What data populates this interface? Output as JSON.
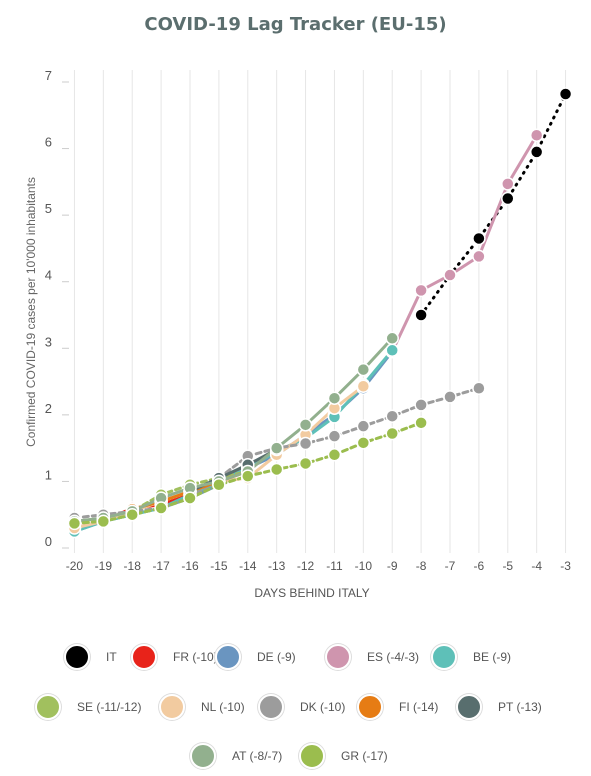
{
  "title": "COVID-19 Lag Tracker (EU-15)",
  "chart_data": {
    "type": "line",
    "xlabel": "DAYS BEHIND ITALY",
    "ylabel": "Confirmed COVID-19 cases per 10'000 inhabitants",
    "x_ticks": [
      -20,
      -19,
      -18,
      -17,
      -16,
      -15,
      -14,
      -13,
      -12,
      -11,
      -10,
      -9,
      -8,
      -7,
      -6,
      -5,
      -4,
      -3
    ],
    "y_ticks": [
      0,
      1,
      2,
      3,
      4,
      5,
      6,
      7
    ],
    "xlim": [
      -20.5,
      -2.5
    ],
    "ylim": [
      0,
      7
    ],
    "grid": "vertical",
    "legend_position": "bottom",
    "series": [
      {
        "name": "IT",
        "color": "#000000",
        "dashed": true,
        "x": [
          -8,
          -7,
          -6,
          -5,
          -4,
          -3
        ],
        "y": [
          3.5,
          4.1,
          4.65,
          5.25,
          5.95,
          6.82
        ]
      },
      {
        "name": "FR (-10)",
        "color": "#e8231a",
        "dashed": false,
        "x": [
          -20,
          -19,
          -18,
          -17,
          -16,
          -15,
          -14,
          -13,
          -12,
          -11
        ],
        "y": [
          0.3,
          0.4,
          0.6,
          0.65,
          0.8,
          1.0,
          1.25,
          1.45,
          1.65,
          2.0
        ]
      },
      {
        "name": "DE (-9)",
        "color": "#6a95c0",
        "dashed": false,
        "x": [
          -20,
          -19,
          -18,
          -17,
          -16,
          -15,
          -14,
          -13,
          -12,
          -11,
          -10,
          -9
        ],
        "y": [
          0.25,
          0.4,
          0.5,
          0.6,
          0.75,
          0.95,
          1.2,
          1.4,
          1.7,
          2.0,
          2.4,
          2.95
        ]
      },
      {
        "name": "ES (-4/-3)",
        "color": "#cf95ae",
        "dashed": false,
        "x": [
          -9,
          -8,
          -7,
          -6,
          -5,
          -4
        ],
        "y": [
          2.95,
          3.87,
          4.1,
          4.38,
          5.47,
          6.2
        ]
      },
      {
        "name": "BE (-9)",
        "color": "#5ec0b8",
        "dashed": false,
        "x": [
          -20,
          -19,
          -18,
          -17,
          -16,
          -15,
          -14,
          -13,
          -12,
          -11,
          -10,
          -9
        ],
        "y": [
          0.25,
          0.4,
          0.5,
          0.6,
          0.8,
          1.0,
          1.2,
          1.45,
          1.65,
          1.97,
          2.45,
          2.97
        ]
      },
      {
        "name": "SE (-11/-12)",
        "color": "#a1c05e",
        "dashed": true,
        "x": [
          -20,
          -19,
          -18,
          -17,
          -16,
          -15,
          -14
        ],
        "y": [
          0.35,
          0.45,
          0.55,
          0.8,
          0.95,
          1.05,
          1.15
        ]
      },
      {
        "name": "NL (-10)",
        "color": "#f2cba0",
        "dashed": false,
        "x": [
          -20,
          -19,
          -18,
          -17,
          -16,
          -15,
          -14,
          -13,
          -12,
          -11,
          -10
        ],
        "y": [
          0.3,
          0.4,
          0.55,
          0.7,
          0.85,
          1.0,
          1.05,
          1.4,
          1.7,
          2.1,
          2.43
        ]
      },
      {
        "name": "DK (-10)",
        "color": "#9c9c9c",
        "dashed": true,
        "x": [
          -20,
          -19,
          -18,
          -17,
          -16,
          -15,
          -14,
          -13,
          -12,
          -11,
          -10,
          -9,
          -8,
          -7,
          -6
        ],
        "y": [
          0.45,
          0.5,
          0.55,
          0.6,
          0.75,
          1.05,
          1.38,
          1.5,
          1.57,
          1.68,
          1.83,
          1.98,
          2.15,
          2.27,
          2.4
        ]
      },
      {
        "name": "FI (-14)",
        "color": "#e67c14",
        "dashed": false,
        "x": [
          -18,
          -17,
          -16,
          -15,
          -14
        ],
        "y": [
          0.58,
          0.7,
          0.85,
          1.0,
          1.15
        ]
      },
      {
        "name": "PT (-13)",
        "color": "#586e6e",
        "dashed": false,
        "x": [
          -16,
          -15,
          -14,
          -13
        ],
        "y": [
          0.85,
          1.05,
          1.25,
          1.48
        ]
      },
      {
        "name": "AT (-8/-7)",
        "color": "#92b08e",
        "dashed": false,
        "x": [
          -20,
          -19,
          -18,
          -17,
          -16,
          -15,
          -14,
          -13,
          -12,
          -11,
          -10,
          -9
        ],
        "y": [
          0.4,
          0.45,
          0.55,
          0.75,
          0.9,
          1.0,
          1.15,
          1.5,
          1.85,
          2.25,
          2.68,
          3.15
        ]
      },
      {
        "name": "GR (-17)",
        "color": "#9bbd4e",
        "dashed": true,
        "x": [
          -20,
          -19,
          -18,
          -17,
          -16,
          -15,
          -14,
          -13,
          -12,
          -11,
          -10,
          -9,
          -8
        ],
        "y": [
          0.37,
          0.4,
          0.5,
          0.6,
          0.75,
          0.95,
          1.08,
          1.18,
          1.27,
          1.4,
          1.58,
          1.72,
          1.88
        ]
      }
    ]
  }
}
